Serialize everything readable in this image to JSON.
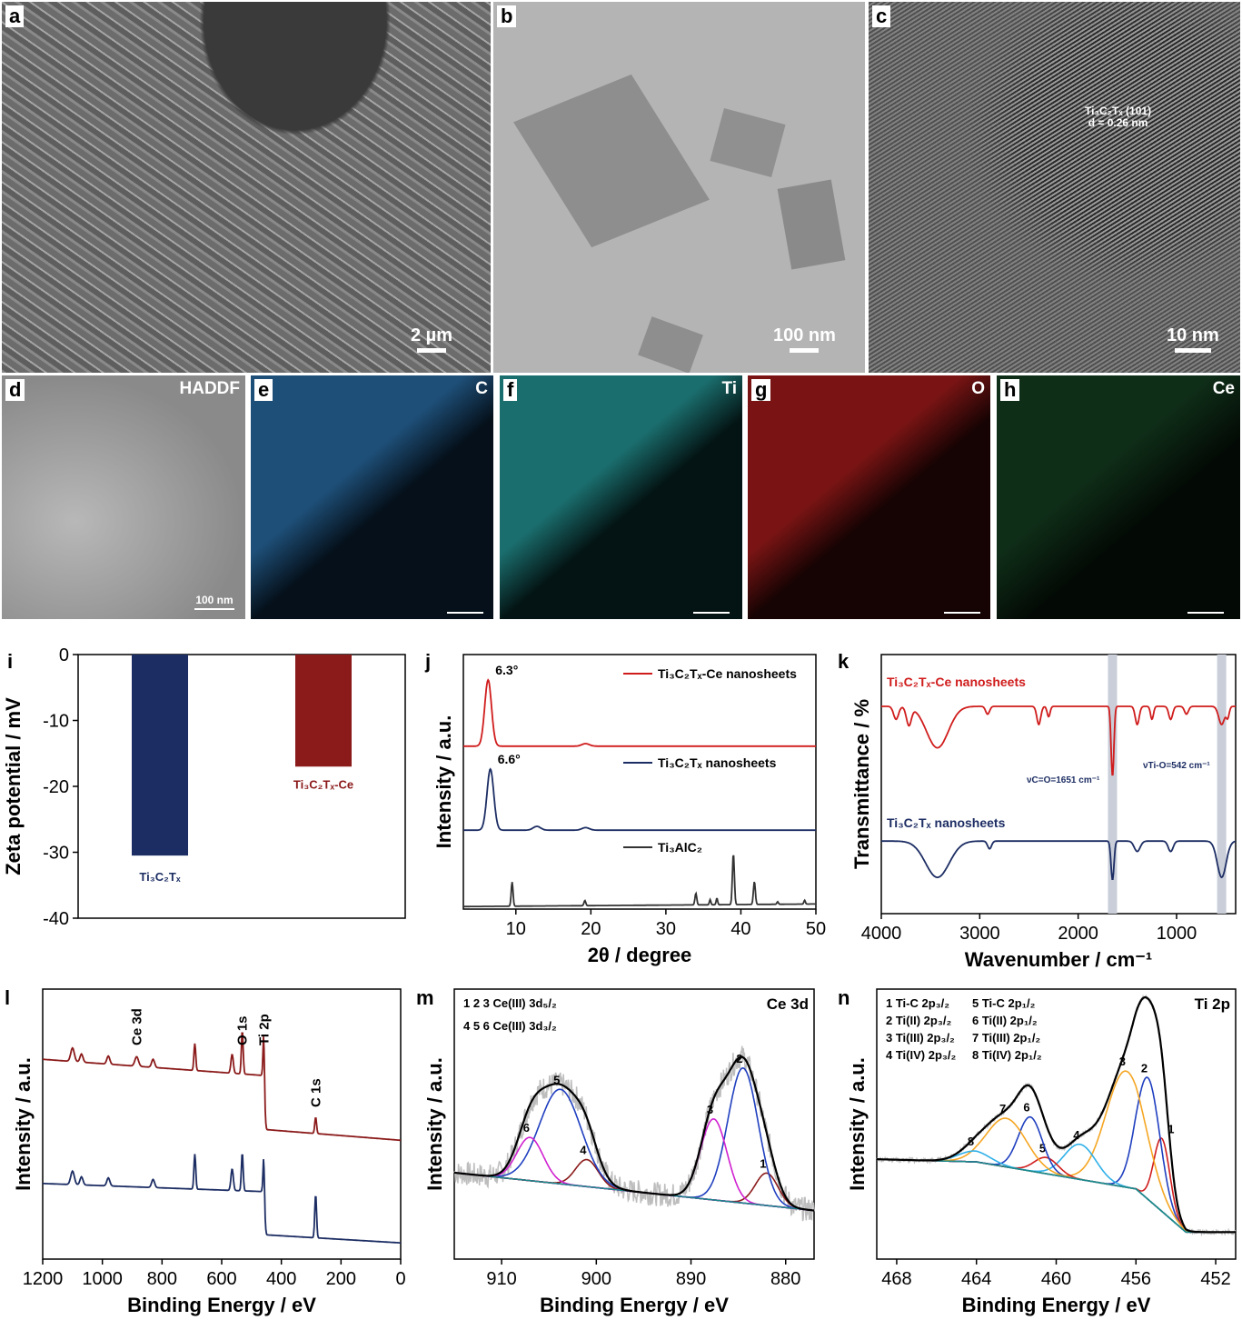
{
  "panels": {
    "a": {
      "label": "a",
      "scale": "2 µm"
    },
    "b": {
      "label": "b",
      "scale": "100 nm"
    },
    "c": {
      "label": "c",
      "scale": "10 nm",
      "annotation": [
        "Ti₃C₂Tₓ (101)",
        "d = 0.26 nm"
      ]
    },
    "d": {
      "label": "d",
      "title": "HADDF",
      "scale": "100 nm"
    },
    "e": {
      "label": "e",
      "element": "C",
      "color": "#2a7fc4"
    },
    "f": {
      "label": "f",
      "element": "Ti",
      "color": "#20a8a8"
    },
    "g": {
      "label": "g",
      "element": "O",
      "color": "#d02020"
    },
    "h": {
      "label": "h",
      "element": "Ce",
      "color": "#1f8a3a"
    }
  },
  "chart_data": [
    {
      "id": "i",
      "label": "i",
      "type": "bar",
      "ylabel": "Zeta potential / mV",
      "ylim": [
        -40,
        0
      ],
      "yticks": [
        0,
        -10,
        -20,
        -30,
        -40
      ],
      "categories": [
        "Ti₃C₂Tₓ",
        "Ti₃C₂Tₓ-Ce"
      ],
      "values": [
        -30.5,
        -17
      ],
      "colors": [
        "#1c2d63",
        "#8b1a1a"
      ]
    },
    {
      "id": "j",
      "label": "j",
      "type": "line",
      "xlabel": "2θ / degree",
      "ylabel": "Intensity / a.u.",
      "xlim": [
        3,
        50
      ],
      "xticks": [
        10,
        20,
        30,
        40,
        50
      ],
      "ylim": [
        0,
        10
      ],
      "series": [
        {
          "name": "Ti₃C₂Tₓ-Ce nanosheets",
          "color": "#d01c1c",
          "baseline": [
            [
              3,
              6.4
            ],
            [
              50,
              6.4
            ]
          ],
          "peaks": [
            [
              6.3,
              2.6,
              0.45
            ],
            [
              19.3,
              0.1,
              0.5
            ]
          ],
          "annotation": "6.3°",
          "annot_x": 6.3
        },
        {
          "name": "Ti₃C₂Tₓ nanosheets",
          "color": "#1c2d63",
          "baseline": [
            [
              3,
              3.1
            ],
            [
              50,
              3.1
            ]
          ],
          "peaks": [
            [
              6.6,
              2.4,
              0.45
            ],
            [
              12.8,
              0.15,
              0.5
            ],
            [
              19.3,
              0.1,
              0.5
            ]
          ],
          "annotation": "6.6°",
          "annot_x": 6.6
        },
        {
          "name": "Ti₃AlC₂",
          "color": "#333333",
          "baseline": [
            [
              3,
              0.1
            ],
            [
              50,
              0.2
            ]
          ],
          "peaks": [
            [
              9.5,
              0.95,
              0.12
            ],
            [
              19.2,
              0.2,
              0.12
            ],
            [
              34,
              0.45,
              0.12
            ],
            [
              35.9,
              0.2,
              0.1
            ],
            [
              36.8,
              0.25,
              0.1
            ],
            [
              39,
              2.0,
              0.13
            ],
            [
              41.8,
              0.9,
              0.13
            ],
            [
              44.9,
              0.1,
              0.1
            ],
            [
              48.5,
              0.15,
              0.1
            ]
          ]
        }
      ]
    },
    {
      "id": "k",
      "label": "k",
      "type": "line",
      "xlabel": "Wavenumber / cm⁻¹",
      "ylabel": "Transmittance / %",
      "xlim": [
        4000,
        400
      ],
      "xticks": [
        4000,
        3000,
        2000,
        1000
      ],
      "ylim": [
        0,
        10
      ],
      "bands": [
        1651,
        542
      ],
      "series": [
        {
          "name": "Ti₃C₂Tₓ-Ce nanosheets",
          "color": "#d01c1c",
          "baseline": [
            [
              4000,
              8.0
            ],
            [
              400,
              8.0
            ]
          ],
          "peaks": [
            [
              3850,
              -0.5,
              25
            ],
            [
              3720,
              -0.7,
              25
            ],
            [
              3430,
              -1.6,
              110
            ],
            [
              2920,
              -0.3,
              20
            ],
            [
              2400,
              -0.7,
              20
            ],
            [
              2300,
              -0.4,
              15
            ],
            [
              1651,
              -2.7,
              14
            ],
            [
              1400,
              -0.7,
              20
            ],
            [
              1250,
              -0.5,
              15
            ],
            [
              1060,
              -0.5,
              20
            ],
            [
              900,
              -0.3,
              20
            ],
            [
              542,
              -0.7,
              30
            ],
            [
              480,
              -0.4,
              15
            ]
          ],
          "annotation": "νC=O=1651 cm⁻¹",
          "annotation2": "νTi-O=542 cm⁻¹"
        },
        {
          "name": "Ti₃C₂Tₓ nanosheets",
          "color": "#1c2d63",
          "baseline": [
            [
              4000,
              2.8
            ],
            [
              400,
              2.8
            ]
          ],
          "peaks": [
            [
              3430,
              -1.4,
              120
            ],
            [
              2900,
              -0.3,
              20
            ],
            [
              1651,
              -1.5,
              15
            ],
            [
              1400,
              -0.4,
              30
            ],
            [
              1060,
              -0.4,
              25
            ],
            [
              542,
              -1.4,
              45
            ]
          ]
        }
      ]
    },
    {
      "id": "l",
      "label": "l",
      "type": "line",
      "xlabel": "Binding Energy / eV",
      "ylabel": "Intensity / a.u.",
      "xlim": [
        1200,
        0
      ],
      "xticks": [
        1200,
        1000,
        800,
        600,
        400,
        200,
        0
      ],
      "ylim": [
        0,
        10
      ],
      "peak_labels": [
        {
          "text": "Ce 3d",
          "x": 885
        },
        {
          "text": "O 1s",
          "x": 531
        },
        {
          "text": "Ti 2p",
          "x": 458
        },
        {
          "text": "C 1s",
          "x": 285
        }
      ],
      "series": [
        {
          "color": "#8b1a1a",
          "baseline": [
            [
              1200,
              7.4
            ],
            [
              460,
              6.8
            ],
            [
              455,
              4.8
            ],
            [
              0,
              4.4
            ]
          ],
          "peaks": [
            [
              1100,
              0.5,
              6
            ],
            [
              1070,
              0.3,
              5
            ],
            [
              980,
              0.3,
              5
            ],
            [
              885,
              0.35,
              6
            ],
            [
              830,
              0.3,
              5
            ],
            [
              690,
              1.0,
              3
            ],
            [
              565,
              0.7,
              4
            ],
            [
              531,
              1.6,
              3
            ],
            [
              458,
              1.8,
              3
            ],
            [
              285,
              0.6,
              3
            ]
          ]
        },
        {
          "color": "#1c2d63",
          "baseline": [
            [
              1200,
              2.8
            ],
            [
              460,
              2.5
            ],
            [
              455,
              0.9
            ],
            [
              0,
              0.6
            ]
          ],
          "peaks": [
            [
              1100,
              0.5,
              6
            ],
            [
              1070,
              0.3,
              5
            ],
            [
              980,
              0.3,
              5
            ],
            [
              830,
              0.3,
              5
            ],
            [
              690,
              1.3,
              3
            ],
            [
              565,
              0.8,
              4
            ],
            [
              531,
              1.4,
              3
            ],
            [
              458,
              1.5,
              3
            ],
            [
              285,
              1.6,
              3
            ]
          ]
        }
      ]
    },
    {
      "id": "m",
      "label": "m",
      "type": "line",
      "title": "Ce 3d",
      "xlabel": "Binding Energy / eV",
      "ylabel": "Intensity / a.u.",
      "xlim": [
        915,
        877
      ],
      "xticks": [
        910,
        900,
        890,
        880
      ],
      "ylim": [
        0,
        10
      ],
      "legend": [
        "1 2 3 Ce(III) 3d₅/₂",
        "4 5 6 Ce(III) 3d₃/₂"
      ],
      "background": [
        [
          915,
          3.2
        ],
        [
          877,
          1.8
        ]
      ],
      "components": [
        {
          "n": "1",
          "c": 882,
          "h": 1.2,
          "w": 1.2,
          "color": "#8b1a1a"
        },
        {
          "n": "2",
          "c": 884.5,
          "h": 5.0,
          "w": 1.6,
          "color": "#1f3fbf"
        },
        {
          "n": "3",
          "c": 887.6,
          "h": 3.0,
          "w": 1.4,
          "color": "#d020d0"
        },
        {
          "n": "4",
          "c": 901,
          "h": 1.0,
          "w": 1.2,
          "color": "#8b1a1a"
        },
        {
          "n": "5",
          "c": 903.8,
          "h": 3.5,
          "w": 2.2,
          "color": "#1f3fbf"
        },
        {
          "n": "6",
          "c": 907,
          "h": 1.6,
          "w": 1.4,
          "color": "#d020d0"
        }
      ]
    },
    {
      "id": "n",
      "label": "n",
      "type": "line",
      "title": "Ti 2p",
      "xlabel": "Binding Energy / eV",
      "ylabel": "Intensity / a.u.",
      "xlim": [
        469,
        451
      ],
      "xticks": [
        468,
        464,
        460,
        456,
        452
      ],
      "ylim": [
        0,
        10
      ],
      "legend": [
        "1 Ti-C 2p₃/₂",
        "2 Ti(II) 2p₃/₂",
        "3 Ti(III) 2p₃/₂",
        "4 Ti(IV) 2p₃/₂",
        "5 Ti-C 2p₁/₂",
        "6 Ti(II) 2p₁/₂",
        "7 Ti(III) 2p₁/₂",
        "8 Ti(IV) 2p₁/₂"
      ],
      "background": [
        [
          469,
          3.7
        ],
        [
          464,
          3.6
        ],
        [
          456,
          2.6
        ],
        [
          453.5,
          1.0
        ],
        [
          451,
          1.0
        ]
      ],
      "components": [
        {
          "n": "1",
          "c": 454.7,
          "h": 2.7,
          "w": 0.4,
          "color": "#d01c1c"
        },
        {
          "n": "2",
          "c": 455.4,
          "h": 4.5,
          "w": 0.6,
          "color": "#1f3fbf"
        },
        {
          "n": "3",
          "c": 456.5,
          "h": 4.3,
          "w": 1.0,
          "color": "#f5a623"
        },
        {
          "n": "4",
          "c": 458.8,
          "h": 1.3,
          "w": 0.8,
          "color": "#2fb0e8"
        },
        {
          "n": "5",
          "c": 460.5,
          "h": 0.6,
          "w": 0.6,
          "color": "#d01c1c"
        },
        {
          "n": "6",
          "c": 461.3,
          "h": 2.0,
          "w": 0.6,
          "color": "#1f3fbf"
        },
        {
          "n": "7",
          "c": 462.5,
          "h": 1.8,
          "w": 1.0,
          "color": "#f5a623"
        },
        {
          "n": "8",
          "c": 464.1,
          "h": 0.4,
          "w": 0.8,
          "color": "#2fb0e8"
        }
      ]
    }
  ]
}
